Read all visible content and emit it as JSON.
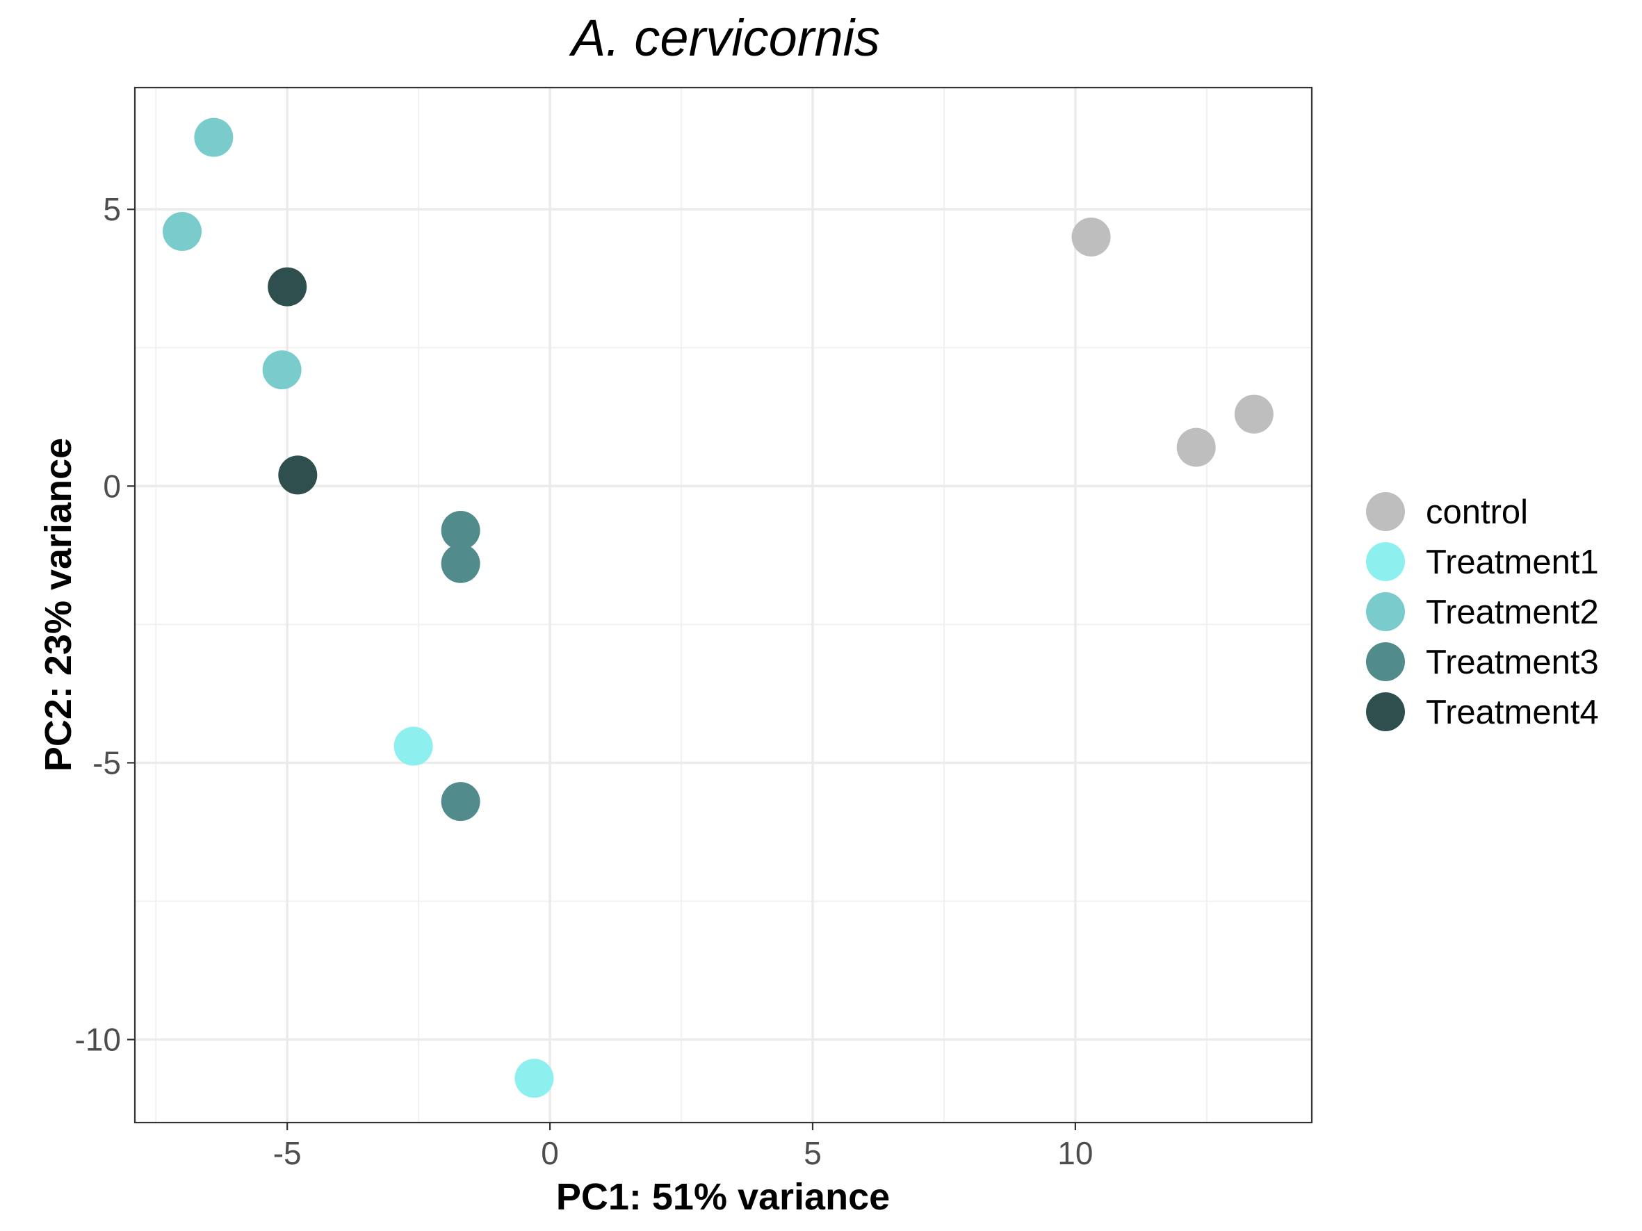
{
  "chart_data": {
    "type": "scatter",
    "title": "A. cervicornis",
    "xlabel": "PC1: 51% variance",
    "ylabel": "PC2: 23% variance",
    "xlim": [
      -7.9,
      14.5
    ],
    "ylim": [
      -11.5,
      7.2
    ],
    "x_ticks": [
      -5,
      0,
      5,
      10
    ],
    "x_tick_labels": [
      "-5",
      "0",
      "5",
      "10"
    ],
    "y_ticks": [
      -10,
      -5,
      0,
      5
    ],
    "y_tick_labels": [
      "-10",
      "-5",
      "0",
      "5"
    ],
    "grid": true,
    "legend_position": "right",
    "series": [
      {
        "name": "control",
        "color": "#bebebe",
        "points": [
          [
            10.3,
            4.5
          ],
          [
            12.3,
            0.7
          ],
          [
            13.4,
            1.3
          ]
        ]
      },
      {
        "name": "Treatment1",
        "color": "#8eefef",
        "points": [
          [
            -2.6,
            -4.7
          ],
          [
            -0.3,
            -10.7
          ]
        ]
      },
      {
        "name": "Treatment2",
        "color": "#7acccc",
        "points": [
          [
            -6.4,
            6.3
          ],
          [
            -7.0,
            4.6
          ],
          [
            -5.1,
            2.1
          ]
        ]
      },
      {
        "name": "Treatment3",
        "color": "#528b8b",
        "points": [
          [
            -1.7,
            -0.8
          ],
          [
            -1.7,
            -1.4
          ],
          [
            -1.7,
            -5.7
          ]
        ]
      },
      {
        "name": "Treatment4",
        "color": "#2f4f4f",
        "points": [
          [
            -5.0,
            3.6
          ],
          [
            -4.8,
            0.2
          ]
        ]
      }
    ]
  }
}
